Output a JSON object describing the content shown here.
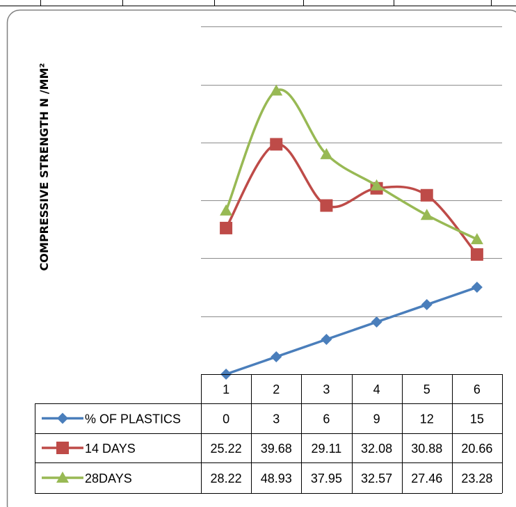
{
  "chart_data": {
    "type": "line",
    "categories": [
      "1",
      "2",
      "3",
      "4",
      "5",
      "6"
    ],
    "ylabel": "COMPRESSIVE STRENGTH N /MM²",
    "ylim": [
      0,
      60
    ],
    "grid": true,
    "legend": "data-table-left",
    "series": [
      {
        "name": "% OF PLASTICS",
        "values": [
          0,
          3,
          6,
          9,
          12,
          15
        ],
        "value_labels": [
          "0",
          "3",
          "6",
          "9",
          "12",
          "15"
        ],
        "color": "#4a7ebb",
        "marker": "diamond",
        "smooth": false
      },
      {
        "name": "14 DAYS",
        "values": [
          25.22,
          39.68,
          29.11,
          32.08,
          30.88,
          20.66
        ],
        "value_labels": [
          "25.22",
          "39.68",
          "29.11",
          "32.08",
          "30.88",
          "20.66"
        ],
        "color": "#be4b48",
        "marker": "square",
        "smooth": true
      },
      {
        "name": "28DAYS",
        "values": [
          28.22,
          48.93,
          37.95,
          32.57,
          27.46,
          23.28
        ],
        "value_labels": [
          "28.22",
          "48.93",
          "37.95",
          "32.57",
          "27.46",
          "23.28"
        ],
        "color": "#98b954",
        "marker": "triangle",
        "smooth": true
      }
    ]
  }
}
